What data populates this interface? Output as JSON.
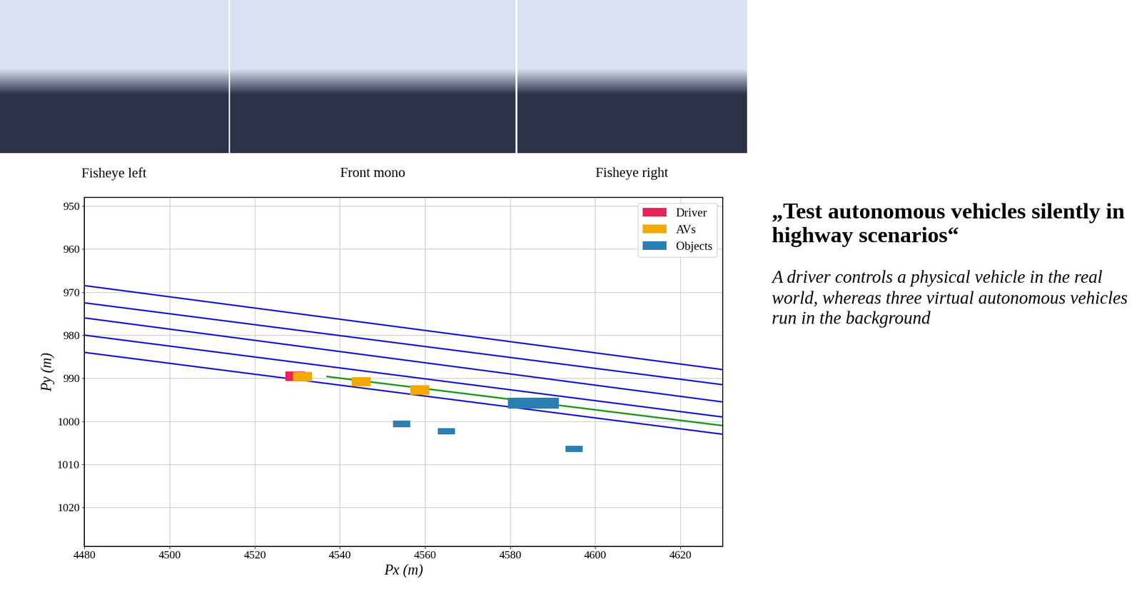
{
  "chart_data": {
    "type": "scene",
    "xlabel": "Px (m)",
    "ylabel": "Py (m)",
    "xlim": [
      4480,
      4630
    ],
    "ylim": [
      1029,
      948
    ],
    "xticks": [
      4480,
      4500,
      4520,
      4540,
      4560,
      4580,
      4600,
      4620
    ],
    "yticks": [
      950,
      960,
      970,
      980,
      990,
      1000,
      1010,
      1020
    ],
    "grid": true,
    "legend": "upper right",
    "lanes": {
      "color": "#1414cc",
      "lines": [
        {
          "x": [
            4480,
            4630
          ],
          "y": [
            968.5,
            988
          ]
        },
        {
          "x": [
            4480,
            4630
          ],
          "y": [
            972.5,
            991.5
          ]
        },
        {
          "x": [
            4480,
            4630
          ],
          "y": [
            976,
            995.5
          ]
        },
        {
          "x": [
            4480,
            4630
          ],
          "y": [
            980,
            999
          ]
        },
        {
          "x": [
            4480,
            4630
          ],
          "y": [
            984,
            1003
          ]
        }
      ]
    },
    "path": {
      "color": "#1f9a1f",
      "x": [
        4537,
        4630
      ],
      "y": [
        989.6,
        1001
      ]
    },
    "series": [
      {
        "name": "Driver",
        "color": "#e8245a",
        "boxes": [
          {
            "x": 4529.5,
            "y": 989.5,
            "length": 4.5,
            "width": 2.2
          }
        ]
      },
      {
        "name": "AVs",
        "color": "#f2a900",
        "boxes": [
          {
            "x": 4531.2,
            "y": 989.6,
            "length": 4.5,
            "width": 2.2
          },
          {
            "x": 4545,
            "y": 990.8,
            "length": 4.5,
            "width": 2.2
          },
          {
            "x": 4558.8,
            "y": 992.7,
            "length": 4.5,
            "width": 2.2
          }
        ]
      },
      {
        "name": "Objects",
        "color": "#2a7fb2",
        "boxes": [
          {
            "x": 4585.5,
            "y": 995.8,
            "length": 12,
            "width": 2.5
          },
          {
            "x": 4554.5,
            "y": 1000.6,
            "length": 4,
            "width": 1.5
          },
          {
            "x": 4565,
            "y": 1002.3,
            "length": 4,
            "width": 1.5
          },
          {
            "x": 4595,
            "y": 1006.4,
            "length": 4,
            "width": 1.5
          }
        ]
      }
    ]
  },
  "image_captions": [
    "Fisheye left",
    "Front mono",
    "Fisheye right"
  ],
  "headline": "„Test autonomous vehicles silently in highway scenarios“",
  "description": "A driver controls a physical vehicle in the real world, whereas three virtual autonomous vehicles run in the background"
}
